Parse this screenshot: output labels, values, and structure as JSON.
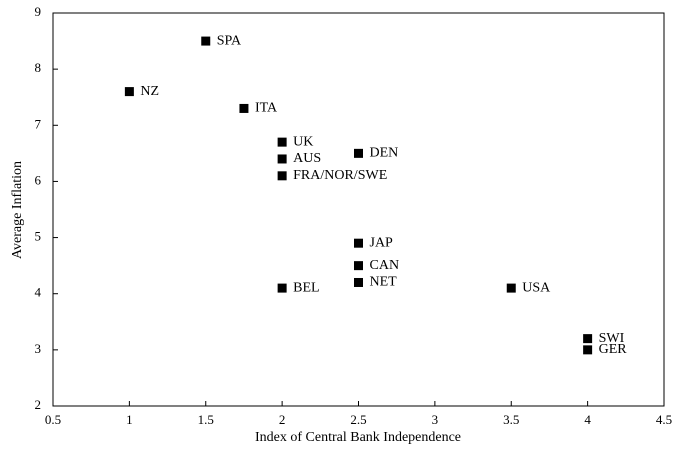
{
  "chart_data": {
    "type": "scatter",
    "x_label": "Index of Central Bank Independence",
    "y_label": "Average Inflation",
    "labels": [
      "SPA",
      "NZ",
      "ITA",
      "UK",
      "AUS",
      "FRA/NOR/SWE",
      "DEN",
      "JAP",
      "CAN",
      "NET",
      "BEL",
      "USA",
      "SWI",
      "GER"
    ],
    "x": [
      1.5,
      1.0,
      1.75,
      2.0,
      2.0,
      2.0,
      2.5,
      2.5,
      2.5,
      2.5,
      2.0,
      3.5,
      4.0,
      4.0
    ],
    "values": [
      8.5,
      7.6,
      7.3,
      6.7,
      6.4,
      6.1,
      6.5,
      4.9,
      4.5,
      4.2,
      4.1,
      4.1,
      3.2,
      3.0
    ],
    "color": "#000000",
    "xlim": [
      0.5,
      4.5
    ],
    "xticks": [
      0.5,
      1,
      1.5,
      2,
      2.5,
      3,
      3.5,
      4,
      4.5
    ],
    "ylim": [
      2,
      9
    ],
    "yticks": [
      2,
      3,
      4,
      5,
      6,
      7,
      8,
      9
    ],
    "grid": false
  }
}
